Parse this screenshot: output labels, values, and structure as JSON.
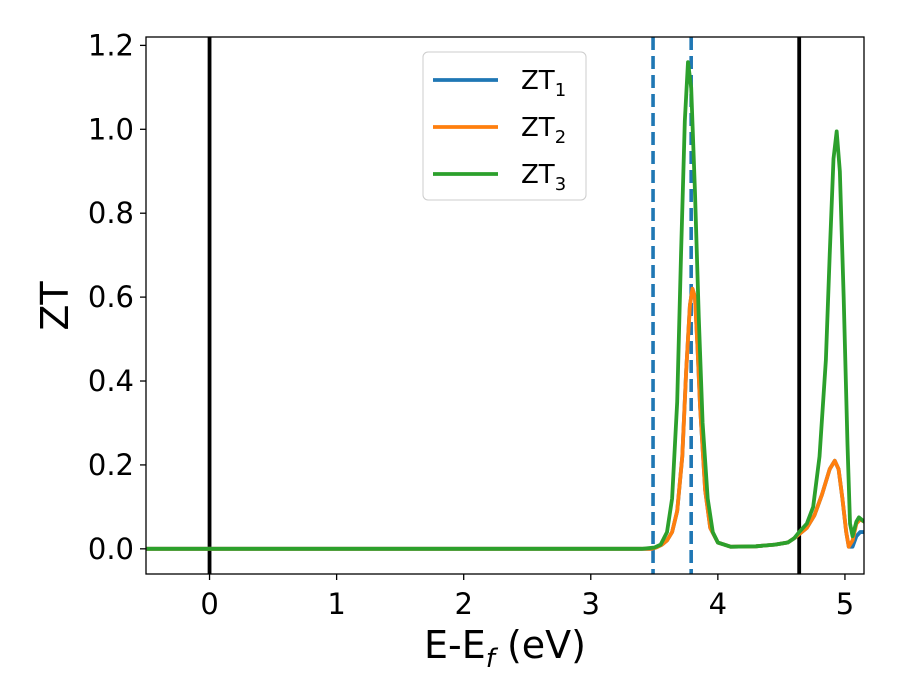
{
  "chart_data": {
    "type": "line",
    "xlabel_main": "E-E",
    "xlabel_sub": "f",
    "xlabel_unit": " (eV)",
    "ylabel": "ZT",
    "xlim": [
      -0.5,
      5.15
    ],
    "ylim": [
      -0.06,
      1.22
    ],
    "x_ticks": [
      0,
      1,
      2,
      3,
      4,
      5
    ],
    "x_tick_labels": [
      "0",
      "1",
      "2",
      "3",
      "4",
      "5"
    ],
    "y_ticks": [
      0.0,
      0.2,
      0.4,
      0.6,
      0.8,
      1.0,
      1.2
    ],
    "y_tick_labels": [
      "0.0",
      "0.2",
      "0.4",
      "0.6",
      "0.8",
      "1.0",
      "1.2"
    ],
    "grid": false,
    "legend": "upper-center",
    "vlines": [
      {
        "x": 0.0,
        "style": "solid",
        "color": "#000000"
      },
      {
        "x": 3.49,
        "style": "dashed",
        "color": "#1f77b4"
      },
      {
        "x": 3.79,
        "style": "dashed",
        "color": "#1f77b4"
      },
      {
        "x": 4.64,
        "style": "solid",
        "color": "#000000"
      }
    ],
    "series": [
      {
        "name_main": "ZT",
        "name_sub": "1",
        "color": "#1f77b4",
        "points": [
          [
            -0.5,
            0
          ],
          [
            3.4,
            0
          ],
          [
            3.48,
            0
          ],
          [
            3.52,
            0.004
          ],
          [
            3.56,
            0.01
          ],
          [
            3.6,
            0.02
          ],
          [
            3.64,
            0.04
          ],
          [
            3.68,
            0.09
          ],
          [
            3.72,
            0.22
          ],
          [
            3.75,
            0.42
          ],
          [
            3.78,
            0.58
          ],
          [
            3.8,
            0.62
          ],
          [
            3.82,
            0.6
          ],
          [
            3.84,
            0.48
          ],
          [
            3.86,
            0.34
          ],
          [
            3.9,
            0.14
          ],
          [
            3.94,
            0.05
          ],
          [
            4.0,
            0.015
          ],
          [
            4.1,
            0.005
          ],
          [
            4.3,
            0.006
          ],
          [
            4.45,
            0.01
          ],
          [
            4.55,
            0.015
          ],
          [
            4.6,
            0.025
          ],
          [
            4.64,
            0.035
          ],
          [
            4.7,
            0.05
          ],
          [
            4.76,
            0.08
          ],
          [
            4.82,
            0.13
          ],
          [
            4.88,
            0.19
          ],
          [
            4.92,
            0.21
          ],
          [
            4.95,
            0.19
          ],
          [
            4.98,
            0.12
          ],
          [
            5.01,
            0.04
          ],
          [
            5.03,
            0.005
          ],
          [
            5.06,
            0.005
          ],
          [
            5.09,
            0.03
          ],
          [
            5.12,
            0.04
          ],
          [
            5.15,
            0.04
          ]
        ]
      },
      {
        "name_main": "ZT",
        "name_sub": "2",
        "color": "#ff7f0e",
        "points": [
          [
            -0.5,
            0
          ],
          [
            3.4,
            0
          ],
          [
            3.48,
            0
          ],
          [
            3.52,
            0.004
          ],
          [
            3.56,
            0.01
          ],
          [
            3.6,
            0.02
          ],
          [
            3.64,
            0.04
          ],
          [
            3.68,
            0.09
          ],
          [
            3.72,
            0.22
          ],
          [
            3.75,
            0.42
          ],
          [
            3.78,
            0.58
          ],
          [
            3.8,
            0.62
          ],
          [
            3.82,
            0.6
          ],
          [
            3.84,
            0.48
          ],
          [
            3.86,
            0.34
          ],
          [
            3.9,
            0.14
          ],
          [
            3.94,
            0.05
          ],
          [
            4.0,
            0.015
          ],
          [
            4.1,
            0.005
          ],
          [
            4.3,
            0.006
          ],
          [
            4.45,
            0.01
          ],
          [
            4.55,
            0.015
          ],
          [
            4.6,
            0.025
          ],
          [
            4.64,
            0.035
          ],
          [
            4.7,
            0.05
          ],
          [
            4.76,
            0.08
          ],
          [
            4.82,
            0.13
          ],
          [
            4.88,
            0.19
          ],
          [
            4.92,
            0.21
          ],
          [
            4.95,
            0.19
          ],
          [
            4.98,
            0.12
          ],
          [
            5.01,
            0.04
          ],
          [
            5.03,
            0.005
          ],
          [
            5.06,
            0.02
          ],
          [
            5.09,
            0.06
          ],
          [
            5.12,
            0.07
          ],
          [
            5.15,
            0.065
          ]
        ]
      },
      {
        "name_main": "ZT",
        "name_sub": "3",
        "color": "#2ca02c",
        "points": [
          [
            -0.5,
            0
          ],
          [
            3.4,
            0
          ],
          [
            3.5,
            0.003
          ],
          [
            3.55,
            0.01
          ],
          [
            3.6,
            0.04
          ],
          [
            3.64,
            0.12
          ],
          [
            3.68,
            0.35
          ],
          [
            3.71,
            0.7
          ],
          [
            3.74,
            1.02
          ],
          [
            3.765,
            1.16
          ],
          [
            3.79,
            1.1
          ],
          [
            3.82,
            0.85
          ],
          [
            3.85,
            0.55
          ],
          [
            3.88,
            0.3
          ],
          [
            3.92,
            0.12
          ],
          [
            3.96,
            0.04
          ],
          [
            4.0,
            0.015
          ],
          [
            4.1,
            0.005
          ],
          [
            4.3,
            0.006
          ],
          [
            4.45,
            0.01
          ],
          [
            4.55,
            0.015
          ],
          [
            4.6,
            0.025
          ],
          [
            4.64,
            0.04
          ],
          [
            4.7,
            0.06
          ],
          [
            4.75,
            0.1
          ],
          [
            4.8,
            0.22
          ],
          [
            4.85,
            0.45
          ],
          [
            4.88,
            0.7
          ],
          [
            4.91,
            0.93
          ],
          [
            4.935,
            0.995
          ],
          [
            4.96,
            0.9
          ],
          [
            4.99,
            0.6
          ],
          [
            5.02,
            0.25
          ],
          [
            5.04,
            0.06
          ],
          [
            5.06,
            0.03
          ],
          [
            5.09,
            0.065
          ],
          [
            5.11,
            0.075
          ],
          [
            5.15,
            0.065
          ]
        ]
      }
    ]
  }
}
